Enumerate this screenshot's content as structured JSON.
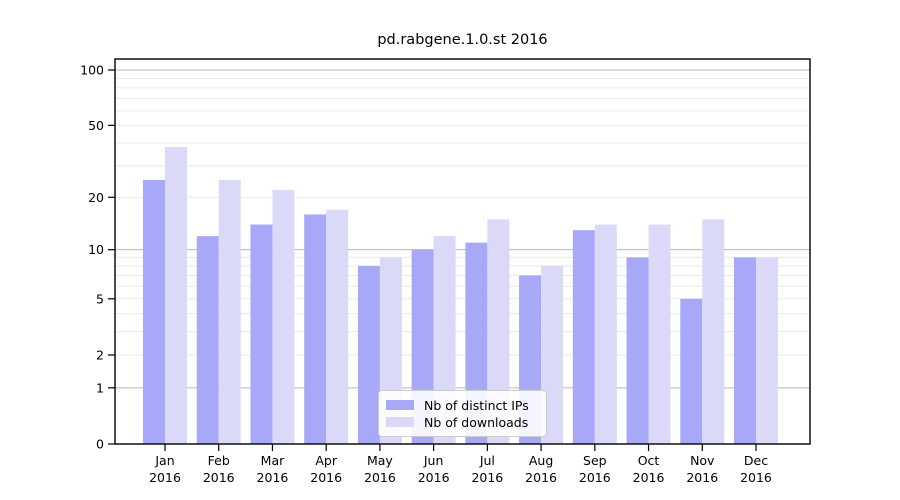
{
  "chart_data": {
    "type": "bar",
    "title": "pd.rabgene.1.0.st 2016",
    "year": "2016",
    "categories": [
      "Jan",
      "Feb",
      "Mar",
      "Apr",
      "May",
      "Jun",
      "Jul",
      "Aug",
      "Sep",
      "Oct",
      "Nov",
      "Dec"
    ],
    "series": [
      {
        "name": "Nb of distinct IPs",
        "color": "#A8A8F8",
        "values": [
          25,
          12,
          14,
          16,
          8,
          10,
          11,
          7,
          13,
          9,
          5,
          9
        ]
      },
      {
        "name": "Nb of downloads",
        "color": "#DADAF8",
        "values": [
          38,
          25,
          22,
          17,
          9,
          12,
          15,
          8,
          14,
          14,
          15,
          9
        ]
      }
    ],
    "xlabel": "",
    "ylabel": "",
    "y_scale": "log1p",
    "ylim": [
      0,
      120
    ],
    "y_ticks": [
      0,
      1,
      2,
      5,
      10,
      20,
      50,
      100
    ],
    "grid": {
      "minor": [
        2,
        3,
        4,
        5,
        6,
        7,
        8,
        9,
        20,
        30,
        40,
        50,
        60,
        70,
        80,
        90
      ],
      "major": [
        1,
        10,
        100
      ]
    },
    "legend_position": "lower center",
    "colors": {
      "grid_minor": "#eaeaea",
      "grid_major": "#b8b8b8",
      "axis": "#000000"
    }
  }
}
